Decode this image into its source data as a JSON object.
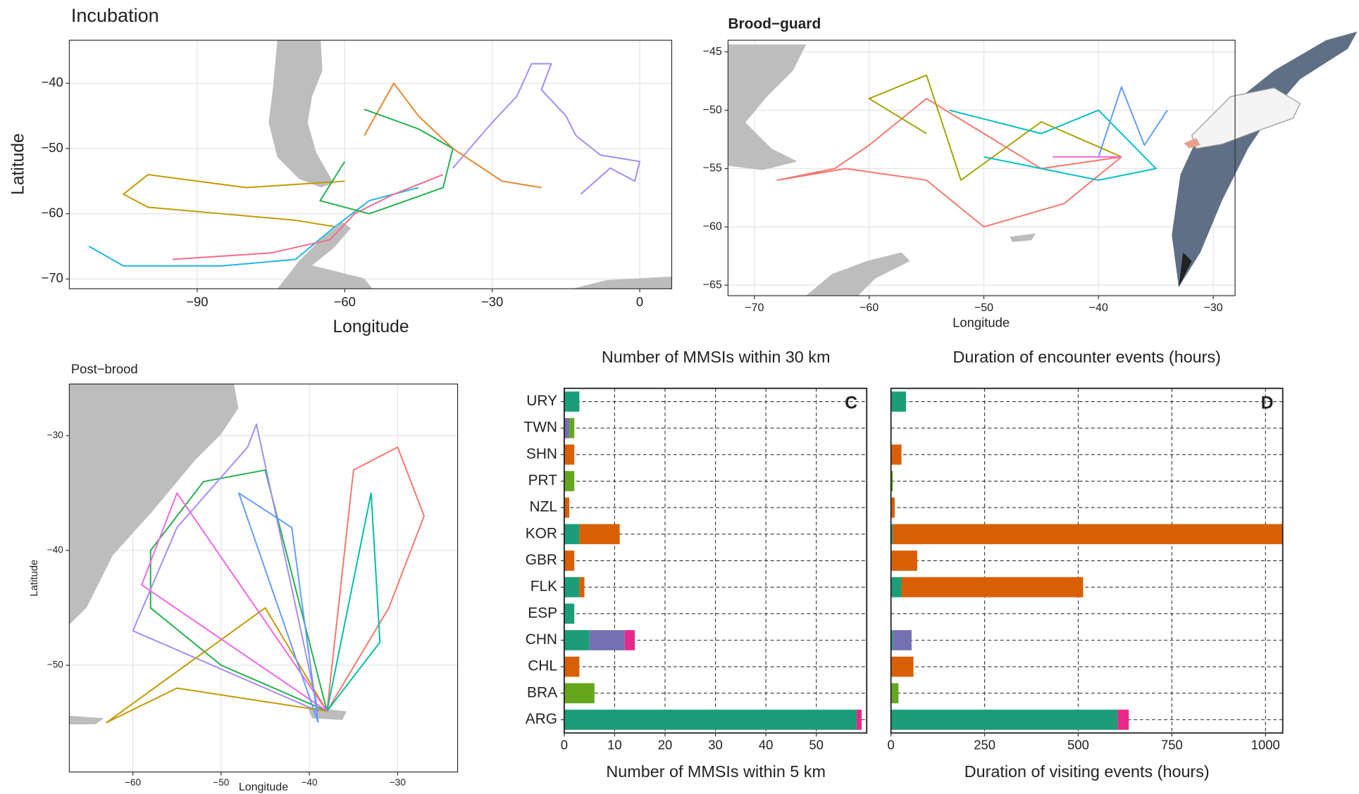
{
  "chart_data": [
    {
      "type": "line",
      "title": "Incubation",
      "xlabel": "Longitude",
      "ylabel": "Latitude",
      "xlim": [
        -116,
        6.5
      ],
      "ylim": [
        -71.5,
        -33.4
      ],
      "xticks": [
        {
          "value": -90,
          "label": "−90"
        },
        {
          "value": -60,
          "label": "−60"
        },
        {
          "value": -30,
          "label": "−30"
        },
        0
      ],
      "yticks": [
        {
          "value": -70,
          "label": "−70"
        },
        {
          "value": -60,
          "label": "−60"
        },
        {
          "value": -50,
          "label": "−50"
        },
        {
          "value": -40,
          "label": "−40"
        }
      ],
      "grid": true,
      "series": [
        {
          "color": "#a58afa",
          "x": [
            -38,
            -30,
            -25,
            -22,
            -18,
            -20,
            -15,
            -13,
            -8,
            0,
            -1,
            -6,
            -12
          ],
          "values": [
            -53,
            -46,
            -42,
            -37,
            -37,
            -41,
            -45,
            -48,
            -51,
            -52,
            -55,
            -53,
            -57
          ]
        },
        {
          "color": "#c49a00",
          "x": [
            -60,
            -80,
            -100,
            -105,
            -100,
            -85,
            -70,
            -62
          ],
          "values": [
            -55,
            -56,
            -54,
            -57,
            -59,
            -60,
            -61,
            -62
          ]
        },
        {
          "color": "#1fb4e4",
          "x": [
            -112,
            -105,
            -85,
            -70,
            -62,
            -55,
            -45
          ],
          "values": [
            -65,
            -68,
            -68,
            -67,
            -62,
            -58,
            -56
          ]
        },
        {
          "color": "#f8698c",
          "x": [
            -95,
            -75,
            -63,
            -58,
            -50,
            -40
          ],
          "values": [
            -67,
            -66,
            -64,
            -60,
            -57,
            -54
          ]
        },
        {
          "color": "#e7862a",
          "x": [
            -56,
            -50,
            -45,
            -38,
            -28,
            -20
          ],
          "values": [
            -48,
            -40,
            -45,
            -50,
            -55,
            -56
          ]
        },
        {
          "color": "#22b14c",
          "x": [
            -56,
            -45,
            -38,
            -40,
            -55,
            -65,
            -60
          ],
          "values": [
            -44,
            -47,
            -50,
            -56,
            -60,
            -58,
            -52
          ]
        }
      ]
    },
    {
      "type": "line",
      "title": "Brood−guard",
      "xlabel": "Longitude",
      "xlim": [
        -72.3,
        -28.1
      ],
      "ylim": [
        -65.9,
        -44
      ],
      "xticks": [
        {
          "value": -70,
          "label": "−70"
        },
        {
          "value": -60,
          "label": "−60"
        },
        {
          "value": -50,
          "label": "−50"
        },
        {
          "value": -40,
          "label": "−40"
        },
        {
          "value": -30,
          "label": "−30"
        }
      ],
      "yticks": [
        {
          "value": -65,
          "label": "−65"
        },
        {
          "value": -60,
          "label": "−60"
        },
        {
          "value": -55,
          "label": "−55"
        },
        {
          "value": -50,
          "label": "−50"
        },
        {
          "value": -45,
          "label": "−45"
        }
      ],
      "grid": true,
      "series": [
        {
          "color": "#f8766d",
          "x": [
            -38,
            -45,
            -55,
            -60,
            -63,
            -68,
            -62,
            -55,
            -50,
            -43,
            -38
          ],
          "values": [
            -54,
            -55,
            -49,
            -53,
            -55,
            -56,
            -55,
            -56,
            -60,
            -58,
            -54
          ]
        },
        {
          "color": "#a3a500",
          "x": [
            -55,
            -60,
            -55,
            -52,
            -45,
            -38
          ],
          "values": [
            -52,
            -49,
            -47,
            -56,
            -51,
            -54
          ]
        },
        {
          "color": "#00bfc4",
          "x": [
            -53,
            -45,
            -40,
            -35,
            -40,
            -50
          ],
          "values": [
            -50,
            -52,
            -50,
            -55,
            -56,
            -54
          ]
        },
        {
          "color": "#619cff",
          "x": [
            -40,
            -38,
            -36,
            -34
          ],
          "values": [
            -54,
            -48,
            -53,
            -50
          ]
        },
        {
          "color": "#f564e3",
          "x": [
            -44,
            -38
          ],
          "values": [
            -54,
            -54
          ]
        }
      ]
    },
    {
      "type": "line",
      "title": "Post−brood",
      "xlabel": "Longitude",
      "ylabel": "Latitude",
      "xlim": [
        -67.2,
        -23.2
      ],
      "ylim": [
        -59.3,
        -25.5
      ],
      "xticks": [
        {
          "value": -60,
          "label": "−60"
        },
        {
          "value": -50,
          "label": "−50"
        },
        {
          "value": -40,
          "label": "−40"
        },
        {
          "value": -30,
          "label": "−30"
        }
      ],
      "yticks": [
        {
          "value": -50,
          "label": "−50"
        },
        {
          "value": -40,
          "label": "−40"
        },
        {
          "value": -30,
          "label": "−30"
        }
      ],
      "grid": true,
      "series": [
        {
          "color": "#f8766d",
          "x": [
            -38,
            -35,
            -30,
            -27,
            -31,
            -38
          ],
          "values": [
            -54,
            -33,
            -31,
            -37,
            -45,
            -54
          ]
        },
        {
          "color": "#22b14c",
          "x": [
            -38,
            -50,
            -58,
            -58,
            -52,
            -45,
            -38
          ],
          "values": [
            -54,
            -50,
            -45,
            -40,
            -34,
            -33,
            -54
          ]
        },
        {
          "color": "#a58afa",
          "x": [
            -39,
            -46,
            -47,
            -55,
            -60,
            -39
          ],
          "values": [
            -54,
            -29,
            -31,
            -38,
            -47,
            -54
          ]
        },
        {
          "color": "#00bfa0",
          "x": [
            -38,
            -33,
            -32,
            -38
          ],
          "values": [
            -54,
            -35,
            -48,
            -54
          ]
        },
        {
          "color": "#c49a00",
          "x": [
            -38,
            -55,
            -63,
            -45,
            -38
          ],
          "values": [
            -54,
            -52,
            -55,
            -45,
            -54
          ]
        },
        {
          "color": "#f564e3",
          "x": [
            -38,
            -55,
            -59,
            -38
          ],
          "values": [
            -54,
            -35,
            -43,
            -54
          ]
        },
        {
          "color": "#619cff",
          "x": [
            -39,
            -42,
            -48,
            -39
          ],
          "values": [
            -55,
            -38,
            -35,
            -55
          ]
        }
      ]
    },
    {
      "type": "bar",
      "orientation": "horizontal",
      "stacked": true,
      "title": "Number of MMSIs within 30 km",
      "xlabel": "Number of MMSIs within 5 km",
      "panel_label": "C",
      "categories": [
        "URY",
        "TWN",
        "SHN",
        "PRT",
        "NZL",
        "KOR",
        "GBR",
        "FLK",
        "ESP",
        "CHN",
        "CHL",
        "BRA",
        "ARG"
      ],
      "xlim": [
        0,
        60
      ],
      "xticks": [
        0,
        10,
        20,
        30,
        40,
        50
      ],
      "grid": true,
      "series": [
        {
          "color": "#1b9e77",
          "values": [
            3,
            0,
            0,
            0,
            0,
            3,
            0,
            3,
            2,
            5,
            0,
            0,
            58
          ]
        },
        {
          "color": "#d95f02",
          "values": [
            0,
            0,
            2,
            0,
            1,
            8,
            2,
            1,
            0,
            0,
            3,
            0,
            0
          ]
        },
        {
          "color": "#7570b3",
          "values": [
            0,
            1,
            0,
            0,
            0,
            0,
            0,
            0,
            0,
            7,
            0,
            0,
            0
          ]
        },
        {
          "color": "#e7298a",
          "values": [
            0,
            0,
            0,
            0,
            0,
            0,
            0,
            0,
            0,
            2,
            0,
            0,
            1
          ]
        },
        {
          "color": "#66a61e",
          "values": [
            0,
            1,
            0,
            2,
            0,
            0,
            0,
            0,
            0,
            0,
            0,
            6,
            0
          ]
        }
      ]
    },
    {
      "type": "bar",
      "orientation": "horizontal",
      "stacked": true,
      "title": "Duration of encounter events (hours)",
      "xlabel": "Duration of visiting events (hours)",
      "panel_label": "D",
      "xlim": [
        0,
        1046
      ],
      "xticks": [
        0,
        250,
        500,
        750,
        1000
      ],
      "grid": true,
      "series": [
        {
          "color": "#1b9e77",
          "values": [
            40,
            0,
            0,
            0,
            0,
            5,
            0,
            28,
            0,
            5,
            0,
            0,
            605
          ]
        },
        {
          "color": "#d95f02",
          "values": [
            0,
            0,
            28,
            0,
            10,
            1041,
            70,
            485,
            0,
            0,
            60,
            0,
            0
          ]
        },
        {
          "color": "#7570b3",
          "values": [
            0,
            0,
            0,
            0,
            0,
            0,
            0,
            0,
            0,
            50,
            0,
            0,
            0
          ]
        },
        {
          "color": "#e7298a",
          "values": [
            0,
            0,
            0,
            0,
            0,
            0,
            0,
            0,
            0,
            0,
            0,
            0,
            30
          ]
        },
        {
          "color": "#66a61e",
          "values": [
            0,
            0,
            0,
            5,
            0,
            0,
            0,
            0,
            0,
            0,
            0,
            20,
            0
          ]
        }
      ]
    }
  ]
}
